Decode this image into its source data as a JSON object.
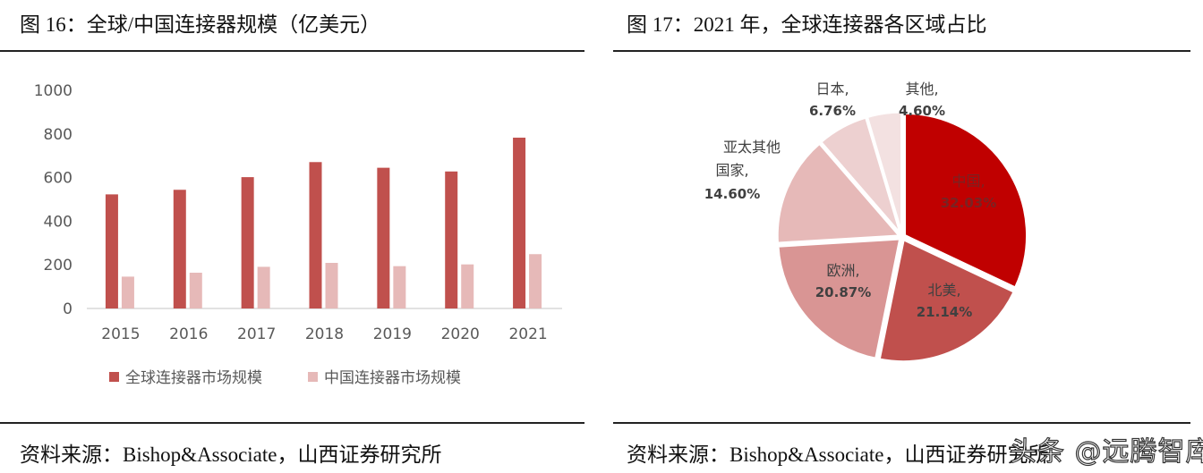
{
  "left": {
    "title": "图 16：全球/中国连接器规模（亿美元）",
    "source": "资料来源：Bishop&Associate，山西证券研究所"
  },
  "right": {
    "title": "图 17：2021 年，全球连接器各区域占比",
    "source": "资料来源：Bishop&Associate，山西证券研究所"
  },
  "watermark": "头条 @远腾智库",
  "chart_data": [
    {
      "type": "bar",
      "categories": [
        "2015",
        "2016",
        "2017",
        "2018",
        "2019",
        "2020",
        "2021"
      ],
      "series": [
        {
          "name": "全球连接器市场规模",
          "values": [
            523,
            544,
            602,
            671,
            645,
            628,
            783
          ],
          "color": "#C0504D"
        },
        {
          "name": "中国连接器市场规模",
          "values": [
            146,
            164,
            191,
            209,
            194,
            202,
            249
          ],
          "color": "#E6B9B8"
        }
      ],
      "yticks": [
        "0",
        "200",
        "400",
        "600",
        "800",
        "1000"
      ],
      "ylim": [
        0,
        1000
      ],
      "grid": false,
      "legend": "bottom"
    },
    {
      "type": "pie",
      "slices": [
        {
          "label": "中国",
          "value": 32.03,
          "text": "32.03%",
          "color": "#C00000"
        },
        {
          "label": "北美",
          "value": 21.14,
          "text": "21.14%",
          "color": "#C0504D"
        },
        {
          "label": "欧洲",
          "value": 20.87,
          "text": "20.87%",
          "color": "#D99594"
        },
        {
          "label": "亚太其他国家",
          "value": 14.6,
          "text": "14.60%",
          "color": "#E6B9B8"
        },
        {
          "label": "日本",
          "value": 6.76,
          "text": "6.76%",
          "color": "#EDD0D0"
        },
        {
          "label": "其他",
          "value": 4.6,
          "text": "4.60%",
          "color": "#F3E1E1"
        }
      ]
    }
  ]
}
